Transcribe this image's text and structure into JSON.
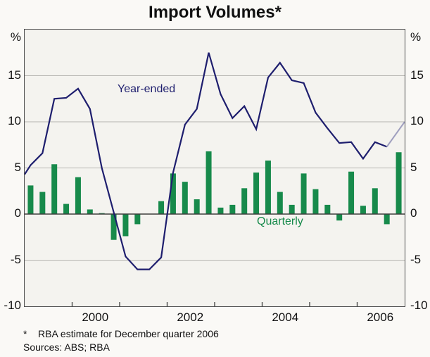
{
  "title": "Import Volumes*",
  "series_labels": {
    "line": "Year-ended",
    "bars": "Quarterly"
  },
  "axes": {
    "unit": "%",
    "y_ticks": [
      15,
      10,
      5,
      0,
      -5,
      -10
    ],
    "x_labels": [
      2000,
      2002,
      2004,
      2006
    ]
  },
  "footnotes": {
    "marker": "*",
    "note": "RBA estimate for December quarter 2006",
    "sources": "Sources: ABS; RBA"
  },
  "colors": {
    "line": "#1e1e6e",
    "estimate_line": "#a0a0bf",
    "bars": "#178a4b",
    "grid": "#b6b5b1",
    "axis": "#3f3f3f",
    "plot_bg": "#f4f3ef",
    "page_bg": "#faf9f6"
  },
  "chart_data": {
    "type": "bar+line",
    "title": "Import Volumes*",
    "ylabel": "%",
    "ylim": [
      -10,
      20
    ],
    "xlim_years": [
      1999,
      2007
    ],
    "gridline_values": [
      15,
      10,
      5,
      -5
    ],
    "zero_line_value": 0,
    "x_tick_years": [
      2000,
      2001,
      2002,
      2003,
      2004,
      2005,
      2006
    ],
    "categories": [
      "1999Q1",
      "1999Q2",
      "1999Q3",
      "1999Q4",
      "2000Q1",
      "2000Q2",
      "2000Q3",
      "2000Q4",
      "2001Q1",
      "2001Q2",
      "2001Q3",
      "2001Q4",
      "2002Q1",
      "2002Q2",
      "2002Q3",
      "2002Q4",
      "2003Q1",
      "2003Q2",
      "2003Q3",
      "2003Q4",
      "2004Q1",
      "2004Q2",
      "2004Q3",
      "2004Q4",
      "2005Q1",
      "2005Q2",
      "2005Q3",
      "2005Q4",
      "2006Q1",
      "2006Q2",
      "2006Q3",
      "2006Q4"
    ],
    "series": [
      {
        "name": "Quarterly",
        "type": "bar",
        "values": [
          3.1,
          2.4,
          5.4,
          1.1,
          4.0,
          0.5,
          0.1,
          -2.8,
          -2.4,
          -1.1,
          0.0,
          1.4,
          4.4,
          3.5,
          1.6,
          6.8,
          0.7,
          1.0,
          2.8,
          4.5,
          5.8,
          2.4,
          1.0,
          4.4,
          2.7,
          1.0,
          -0.7,
          4.6,
          0.9,
          2.8,
          -1.1,
          6.7
        ]
      },
      {
        "name": "Year-ended",
        "type": "line",
        "left_edge_entry_value": 4.3,
        "last_point_is_estimate": true,
        "values": [
          5.3,
          6.6,
          12.5,
          12.6,
          13.6,
          11.4,
          5.0,
          0.2,
          -4.6,
          -6.0,
          -6.0,
          -4.7,
          4.5,
          9.7,
          11.4,
          17.5,
          13.0,
          10.4,
          11.7,
          9.2,
          14.8,
          16.4,
          14.5,
          14.2,
          11.0,
          9.3,
          7.7,
          7.8,
          6.0,
          7.8,
          7.3,
          10.0
        ]
      }
    ]
  }
}
